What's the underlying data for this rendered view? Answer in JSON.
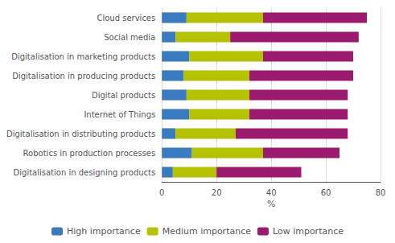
{
  "chart_data": {
    "type": "bar",
    "orientation": "horizontal",
    "stacked": true,
    "categories": [
      "Cloud services",
      "Social media",
      "Digitalisation in marketing products",
      "Digitalisation in producing products",
      "Digital products",
      "Internet of Things",
      "Digitalisation in distributing products",
      "Robotics in production processes",
      "Digitalisation in designing products"
    ],
    "series": [
      {
        "name": "High importance",
        "color": "#3a7abf",
        "values": [
          9,
          5,
          10,
          8,
          9,
          10,
          5,
          11,
          4
        ]
      },
      {
        "name": "Medium importance",
        "color": "#b5c200",
        "values": [
          28,
          20,
          27,
          24,
          23,
          22,
          22,
          26,
          16
        ]
      },
      {
        "name": "Low importance",
        "color": "#9b1b6e",
        "values": [
          38,
          47,
          33,
          38,
          36,
          36,
          41,
          28,
          31
        ]
      }
    ],
    "xlabel": "%",
    "xlim": [
      0,
      80
    ],
    "xticks": [
      0,
      20,
      40,
      60,
      80
    ],
    "grid": true,
    "legend": "bottom"
  }
}
